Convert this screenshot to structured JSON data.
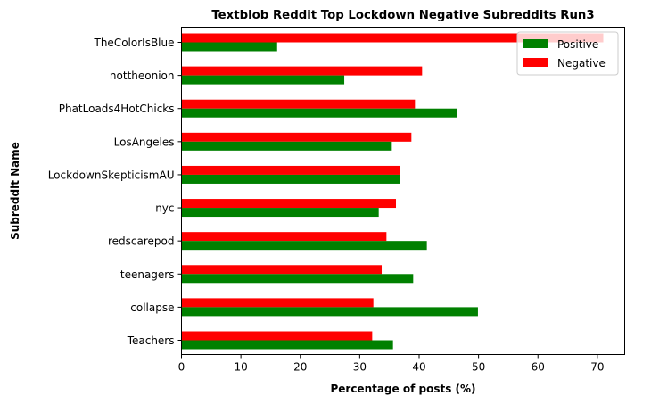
{
  "chart_data": {
    "type": "bar",
    "orientation": "horizontal",
    "title": "Textblob Reddit Top Lockdown Negative Subreddits Run3",
    "xlabel": "Percentage of posts (%)",
    "ylabel": "Subreddit Name",
    "categories": [
      "Teachers",
      "collapse",
      "teenagers",
      "redscarepod",
      "nyc",
      "LockdownSkepticismAU",
      "LosAngeles",
      "PhatLoads4HotChicks",
      "nottheonion",
      "TheColorIsBlue"
    ],
    "series": [
      {
        "name": "Positive",
        "color": "#008000",
        "values": [
          35.6,
          49.9,
          39.0,
          41.3,
          33.2,
          36.7,
          35.4,
          46.4,
          27.4,
          16.1
        ]
      },
      {
        "name": "Negative",
        "color": "#ff0000",
        "values": [
          32.1,
          32.3,
          33.7,
          34.5,
          36.1,
          36.7,
          38.7,
          39.3,
          40.5,
          71.0
        ]
      }
    ],
    "xlim": [
      0,
      74.6
    ],
    "xticks": [
      0,
      10,
      20,
      30,
      40,
      50,
      60,
      70
    ],
    "grid": false,
    "legend_position": "upper right"
  }
}
